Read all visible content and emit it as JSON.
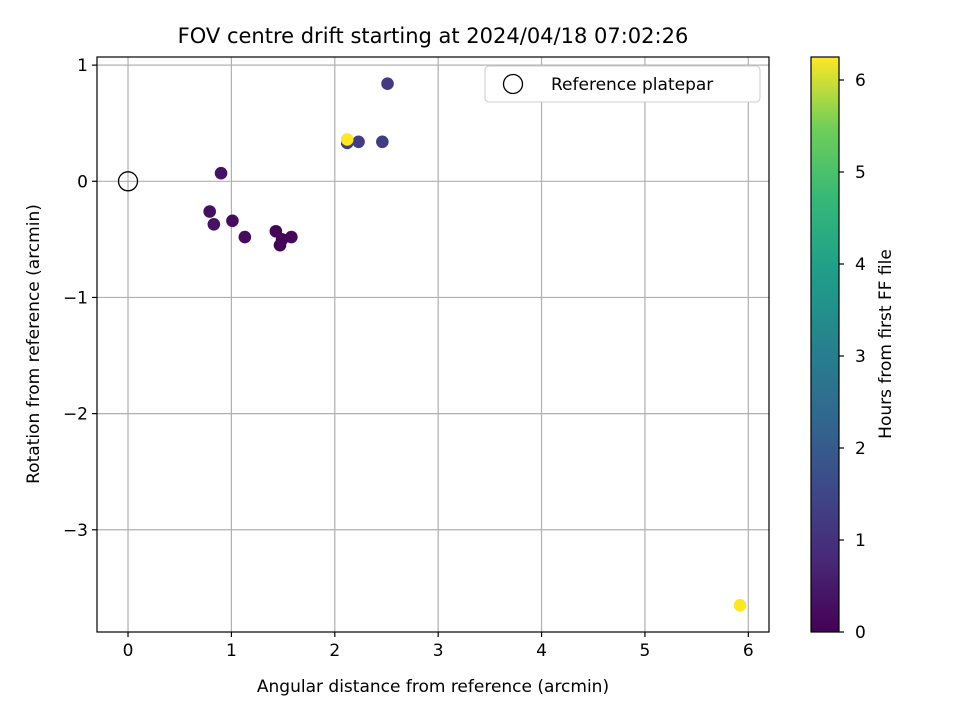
{
  "chart_data": {
    "type": "scatter",
    "title": "FOV centre drift starting at 2024/04/18 07:02:26",
    "xlabel": "Angular distance from reference (arcmin)",
    "ylabel": "Rotation from reference (arcmin)",
    "xlim": [
      -0.3,
      6.2
    ],
    "ylim": [
      -3.88,
      1.07
    ],
    "xticks": [
      0,
      1,
      2,
      3,
      4,
      5,
      6
    ],
    "xtick_labels": [
      "0",
      "1",
      "2",
      "3",
      "4",
      "5",
      "6"
    ],
    "yticks": [
      1,
      0,
      -1,
      -2,
      -3
    ],
    "ytick_labels": [
      "1",
      "0",
      "−1",
      "−2",
      "−3"
    ],
    "grid": true,
    "legend": {
      "position": "top-right",
      "entries": [
        "Reference platepar"
      ]
    },
    "reference_point": {
      "x": 0,
      "y": 0,
      "label": "Reference platepar"
    },
    "colorbar": {
      "label": "Hours from first FF file",
      "colormap": "viridis",
      "range": [
        0,
        6.25
      ],
      "ticks": [
        0,
        1,
        2,
        3,
        4,
        5,
        6
      ],
      "tick_labels": [
        "0",
        "1",
        "2",
        "3",
        "4",
        "5",
        "6"
      ]
    },
    "points": [
      {
        "x": 0.9,
        "y": 0.07,
        "hours": 0.35
      },
      {
        "x": 0.79,
        "y": -0.26,
        "hours": 0.3
      },
      {
        "x": 0.83,
        "y": -0.37,
        "hours": 0.35
      },
      {
        "x": 1.01,
        "y": -0.34,
        "hours": 0.25
      },
      {
        "x": 1.13,
        "y": -0.48,
        "hours": 0.2
      },
      {
        "x": 1.43,
        "y": -0.43,
        "hours": 0.1
      },
      {
        "x": 1.47,
        "y": -0.55,
        "hours": 0.05
      },
      {
        "x": 1.49,
        "y": -0.5,
        "hours": 0.1
      },
      {
        "x": 1.58,
        "y": -0.48,
        "hours": 0.15
      },
      {
        "x": 2.12,
        "y": 0.33,
        "hours": 1.25
      },
      {
        "x": 2.23,
        "y": 0.34,
        "hours": 1.25
      },
      {
        "x": 2.46,
        "y": 0.34,
        "hours": 1.25
      },
      {
        "x": 2.51,
        "y": 0.84,
        "hours": 1.2
      },
      {
        "x": 2.12,
        "y": 0.36,
        "hours": 6.25
      },
      {
        "x": 5.92,
        "y": -3.65,
        "hours": 6.25
      }
    ]
  }
}
